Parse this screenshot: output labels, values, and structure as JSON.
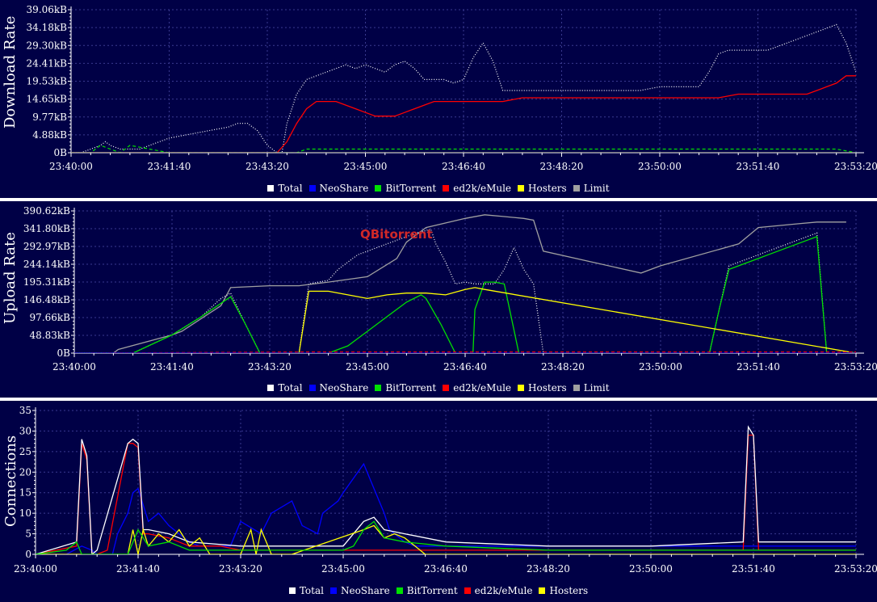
{
  "colors": {
    "background": "#000046",
    "grid": "#3a3a90",
    "axis": "#ffffff",
    "series": {
      "Total": "#ffffff",
      "NeoShare": "#0000ff",
      "BitTorrent": "#00e000",
      "ed2k/eMule": "#ff0000",
      "Hosters": "#ffff00",
      "Limit": "#a0a0a0"
    }
  },
  "annotation": "QBitorrent",
  "chart_data": [
    {
      "type": "line",
      "title": "",
      "ylabel": "Download Rate",
      "xlabel": "",
      "x_tick_labels": [
        "23:40:00",
        "23:41:40",
        "23:43:20",
        "23:45:00",
        "23:46:40",
        "23:48:20",
        "23:50:00",
        "23:51:40",
        "23:53:20"
      ],
      "y_tick_labels": [
        "0B",
        "4.88kB",
        "9.77kB",
        "14.65kB",
        "19.53kB",
        "24.41kB",
        "29.30kB",
        "34.18kB",
        "39.06kB"
      ],
      "xlim": [
        0,
        800
      ],
      "ylim": [
        0,
        39.06
      ],
      "grid": true,
      "legend_placement": "bottom",
      "legend": [
        "Total",
        "NeoShare",
        "BitTorrent",
        "ed2k/eMule",
        "Hosters",
        "Limit"
      ],
      "series": [
        {
          "name": "Total",
          "style": "dotted",
          "x": [
            0,
            10,
            20,
            30,
            35,
            40,
            50,
            60,
            70,
            80,
            90,
            100,
            120,
            140,
            160,
            170,
            180,
            190,
            200,
            210,
            215,
            220,
            230,
            240,
            250,
            260,
            270,
            280,
            290,
            300,
            310,
            320,
            330,
            340,
            350,
            360,
            370,
            380,
            390,
            400,
            410,
            420,
            430,
            440,
            450,
            460,
            470,
            480,
            490,
            500,
            510,
            520,
            540,
            560,
            580,
            600,
            620,
            640,
            650,
            660,
            670,
            680,
            690,
            700,
            710,
            720,
            730,
            740,
            750,
            760,
            770,
            780,
            790,
            800
          ],
          "y": [
            0,
            0,
            1,
            2,
            3,
            2,
            1,
            1,
            1,
            2,
            3,
            4,
            5,
            6,
            7,
            8,
            8,
            6,
            2,
            0,
            0,
            8,
            16,
            20,
            21,
            22,
            23,
            24,
            23,
            24,
            23,
            22,
            24,
            25,
            23,
            20,
            20,
            20,
            19,
            20,
            26,
            30,
            25,
            17,
            17,
            17,
            17,
            17,
            17,
            17,
            17,
            17,
            17,
            17,
            17,
            18,
            18,
            18,
            22,
            27,
            28,
            28,
            28,
            28,
            28,
            29,
            30,
            31,
            32,
            33,
            34,
            35,
            30,
            22
          ]
        },
        {
          "name": "NeoShare",
          "style": "solid",
          "x": [
            0,
            800
          ],
          "y": [
            0,
            0
          ]
        },
        {
          "name": "BitTorrent",
          "style": "dashed",
          "x": [
            0,
            20,
            30,
            40,
            50,
            60,
            80,
            100,
            200,
            210,
            220,
            230,
            240,
            250,
            260,
            300,
            400,
            500,
            600,
            700,
            780,
            800
          ],
          "y": [
            0,
            0,
            2,
            1,
            0,
            2,
            1,
            0,
            0,
            0,
            0,
            0,
            1,
            1,
            1,
            1,
            1,
            1,
            1,
            1,
            1,
            0
          ]
        },
        {
          "name": "ed2k/eMule",
          "style": "solid",
          "x": [
            0,
            180,
            200,
            210,
            220,
            230,
            240,
            250,
            260,
            270,
            280,
            290,
            300,
            310,
            320,
            330,
            340,
            350,
            360,
            370,
            380,
            400,
            420,
            440,
            460,
            480,
            500,
            520,
            540,
            560,
            580,
            600,
            620,
            640,
            660,
            680,
            700,
            720,
            740,
            750,
            760,
            770,
            780,
            790,
            800
          ],
          "y": [
            0,
            0,
            0,
            0,
            3,
            8,
            12,
            14,
            14,
            14,
            13,
            12,
            11,
            10,
            10,
            10,
            11,
            12,
            13,
            14,
            14,
            14,
            14,
            14,
            15,
            15,
            15,
            15,
            15,
            15,
            15,
            15,
            15,
            15,
            15,
            16,
            16,
            16,
            16,
            16,
            17,
            18,
            19,
            21,
            21
          ]
        },
        {
          "name": "Hosters",
          "style": "solid",
          "x": [
            0,
            800
          ],
          "y": [
            0,
            0
          ]
        },
        {
          "name": "Limit",
          "style": "solid",
          "x": [
            0,
            800
          ],
          "y": [
            0,
            0
          ]
        }
      ]
    },
    {
      "type": "line",
      "title": "",
      "ylabel": "Upload Rate",
      "xlabel": "",
      "x_tick_labels": [
        "23:40:00",
        "23:41:40",
        "23:43:20",
        "23:45:00",
        "23:46:40",
        "23:48:20",
        "23:50:00",
        "23:51:40",
        "23:53:20"
      ],
      "y_tick_labels": [
        "0B",
        "48.83kB",
        "97.66kB",
        "146.48kB",
        "195.31kB",
        "244.14kB",
        "292.97kB",
        "341.80kB",
        "390.62kB"
      ],
      "xlim": [
        0,
        800
      ],
      "ylim": [
        0,
        390.62
      ],
      "grid": true,
      "legend_placement": "bottom",
      "legend": [
        "Total",
        "NeoShare",
        "BitTorrent",
        "ed2k/eMule",
        "Hosters",
        "Limit"
      ],
      "series": [
        {
          "name": "Limit",
          "style": "solid",
          "x": [
            0,
            40,
            45,
            100,
            110,
            150,
            160,
            200,
            230,
            260,
            300,
            330,
            340,
            360,
            400,
            420,
            440,
            460,
            470,
            480,
            580,
            600,
            680,
            700,
            740,
            760,
            790
          ],
          "y": [
            0,
            0,
            10,
            50,
            60,
            130,
            180,
            185,
            185,
            195,
            210,
            260,
            305,
            345,
            370,
            380,
            375,
            370,
            365,
            280,
            220,
            240,
            300,
            345,
            355,
            360,
            360
          ]
        },
        {
          "name": "Total",
          "style": "dotted",
          "x": [
            0,
            60,
            100,
            130,
            150,
            160,
            175,
            190,
            200,
            220,
            230,
            240,
            250,
            260,
            270,
            290,
            310,
            330,
            350,
            365,
            370,
            380,
            390,
            400,
            410,
            420,
            430,
            440,
            450,
            460,
            470,
            480,
            500,
            600,
            650,
            660,
            670,
            680,
            690,
            700,
            710,
            720,
            730,
            740,
            750,
            760,
            770
          ],
          "y": [
            0,
            0,
            50,
            100,
            150,
            165,
            80,
            0,
            0,
            0,
            0,
            190,
            195,
            200,
            230,
            270,
            290,
            310,
            330,
            340,
            300,
            250,
            190,
            195,
            190,
            190,
            190,
            230,
            290,
            230,
            190,
            0,
            0,
            0,
            0,
            120,
            240,
            250,
            260,
            270,
            280,
            290,
            300,
            310,
            320,
            330,
            0
          ]
        },
        {
          "name": "BitTorrent",
          "style": "solid",
          "x": [
            0,
            60,
            100,
            130,
            160,
            175,
            190,
            230,
            260,
            280,
            300,
            320,
            340,
            355,
            360,
            375,
            390,
            408,
            410,
            420,
            430,
            440,
            455,
            470,
            480,
            600,
            650,
            660,
            670,
            680,
            690,
            700,
            710,
            720,
            730,
            740,
            750,
            760,
            770
          ],
          "y": [
            0,
            0,
            50,
            100,
            155,
            80,
            0,
            0,
            0,
            20,
            60,
            100,
            140,
            160,
            150,
            80,
            0,
            0,
            120,
            195,
            195,
            190,
            0,
            0,
            0,
            0,
            0,
            120,
            230,
            240,
            250,
            260,
            270,
            280,
            290,
            300,
            310,
            320,
            0
          ]
        },
        {
          "name": "Hosters",
          "style": "solid",
          "x": [
            0,
            230,
            240,
            260,
            280,
            300,
            320,
            340,
            360,
            380,
            400,
            410,
            420,
            800
          ],
          "y": [
            0,
            0,
            170,
            170,
            160,
            150,
            160,
            165,
            165,
            160,
            175,
            180,
            175,
            0
          ]
        },
        {
          "name": "ed2k/eMule",
          "style": "dashed",
          "x": [
            0,
            240,
            300,
            400,
            500,
            600,
            700,
            800
          ],
          "y": [
            0,
            3,
            3,
            3,
            3,
            3,
            3,
            3
          ]
        },
        {
          "name": "NeoShare",
          "style": "solid",
          "x": [
            0,
            800
          ],
          "y": [
            0,
            0
          ]
        }
      ]
    },
    {
      "type": "line",
      "title": "",
      "ylabel": "Connections",
      "xlabel": "",
      "x_tick_labels": [
        "23:40:00",
        "23:41:40",
        "23:43:20",
        "23:45:00",
        "23:46:40",
        "23:48:20",
        "23:50:00",
        "23:51:40",
        "23:53:20"
      ],
      "y_tick_labels": [
        "0",
        "5",
        "10",
        "15",
        "20",
        "25",
        "30",
        "35"
      ],
      "xlim": [
        0,
        800
      ],
      "ylim": [
        0,
        35
      ],
      "grid": true,
      "legend_placement": "bottom",
      "legend": [
        "Total",
        "NeoShare",
        "BitTorrent",
        "ed2k/eMule",
        "Hosters"
      ],
      "series": [
        {
          "name": "NeoShare",
          "style": "solid",
          "x": [
            0,
            30,
            45,
            55,
            60,
            75,
            80,
            90,
            95,
            100,
            110,
            120,
            130,
            140,
            150,
            160,
            170,
            190,
            200,
            220,
            230,
            250,
            260,
            275,
            280,
            295,
            300,
            320,
            330,
            340,
            345,
            350,
            360,
            370,
            380,
            390,
            400,
            410,
            420,
            450,
            520,
            600,
            700,
            800
          ],
          "y": [
            0,
            0,
            2,
            1,
            0,
            0,
            5,
            10,
            15,
            16,
            8,
            10,
            7,
            5,
            3,
            2,
            2,
            2,
            8,
            5,
            10,
            13,
            7,
            5,
            10,
            13,
            15,
            22,
            16,
            10,
            6,
            5,
            3,
            2,
            2,
            2,
            2,
            2,
            2,
            2,
            2,
            2,
            2,
            2
          ]
        },
        {
          "name": "ed2k/eMule",
          "style": "solid",
          "x": [
            0,
            40,
            45,
            50,
            55,
            60,
            70,
            90,
            95,
            100,
            105,
            110,
            130,
            150,
            180,
            200,
            300,
            400,
            500,
            600,
            690,
            695,
            700,
            705,
            710,
            800
          ],
          "y": [
            0,
            2,
            27,
            23,
            0,
            0,
            1,
            27,
            27,
            26,
            5,
            5,
            4,
            2,
            2,
            1,
            1,
            1,
            1,
            1,
            1,
            29,
            29,
            1,
            1,
            1
          ]
        },
        {
          "name": "Total",
          "style": "solid",
          "x": [
            0,
            40,
            45,
            50,
            55,
            60,
            90,
            95,
            100,
            105,
            110,
            130,
            150,
            200,
            250,
            300,
            320,
            330,
            340,
            360,
            400,
            500,
            600,
            690,
            695,
            700,
            705,
            800
          ],
          "y": [
            0,
            3,
            28,
            24,
            0,
            1,
            27,
            28,
            27,
            6,
            6,
            5,
            3,
            2,
            2,
            2,
            8,
            9,
            6,
            5,
            3,
            2,
            2,
            3,
            31,
            29,
            3,
            3
          ]
        },
        {
          "name": "Hosters",
          "style": "solid",
          "x": [
            0,
            90,
            95,
            100,
            105,
            110,
            120,
            130,
            140,
            150,
            160,
            170,
            190,
            200,
            210,
            215,
            220,
            230,
            240,
            250,
            320,
            330,
            340,
            350,
            360,
            370,
            380,
            800
          ],
          "y": [
            0,
            0,
            6,
            0,
            6,
            2,
            5,
            3,
            6,
            2,
            4,
            0,
            0,
            0,
            6,
            0,
            6,
            0,
            0,
            0,
            6,
            7,
            4,
            5,
            4,
            2,
            0,
            0
          ]
        },
        {
          "name": "BitTorrent",
          "style": "solid",
          "x": [
            0,
            30,
            40,
            45,
            60,
            90,
            100,
            110,
            130,
            150,
            200,
            250,
            300,
            310,
            320,
            330,
            340,
            360,
            400,
            500,
            600,
            700,
            800
          ],
          "y": [
            0,
            1,
            3,
            0,
            0,
            0,
            6,
            2,
            3,
            1,
            1,
            1,
            1,
            2,
            6,
            8,
            4,
            3,
            2,
            1,
            1,
            1,
            1
          ]
        }
      ]
    }
  ]
}
